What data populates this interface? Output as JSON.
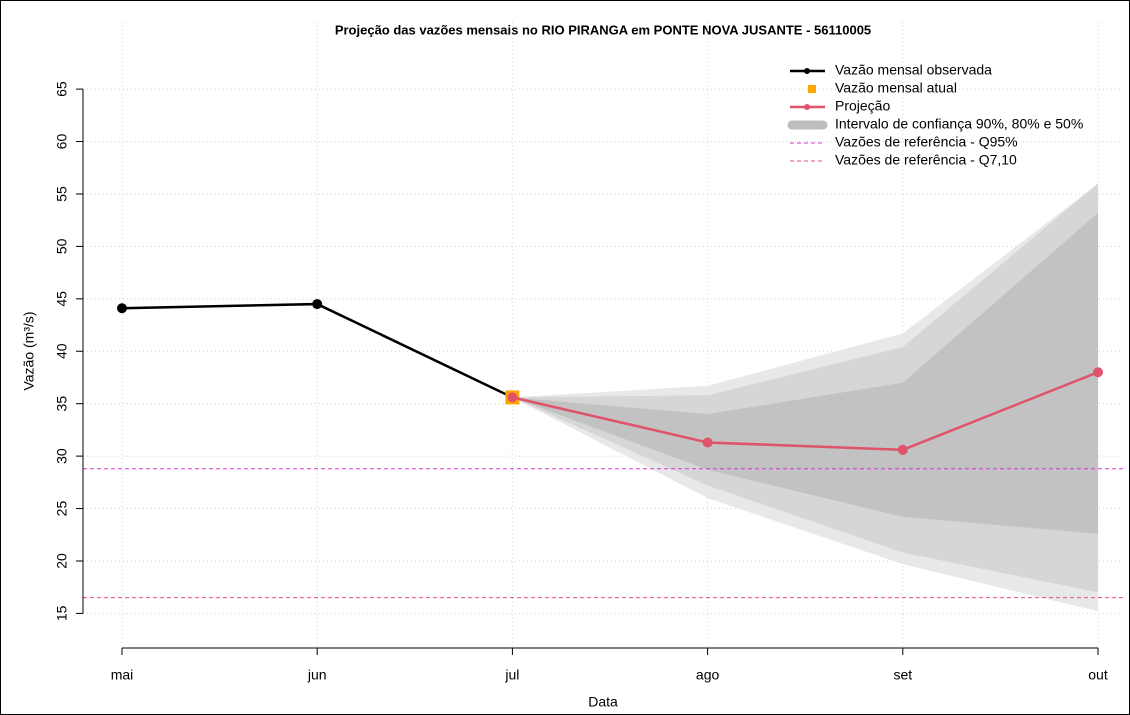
{
  "chart_data": {
    "type": "line",
    "title": "Projeção das vazões mensais no RIO PIRANGA em PONTE NOVA JUSANTE - 56110005",
    "xlabel": "Data",
    "ylabel": "Vazão (m³/s)",
    "categories": [
      "mai",
      "jun",
      "jul",
      "ago",
      "set",
      "out"
    ],
    "ylim": [
      11.7,
      71.4
    ],
    "yticks": [
      15,
      20,
      25,
      30,
      35,
      40,
      45,
      50,
      55,
      60,
      65
    ],
    "grid": true,
    "legend": "top-right",
    "bands_legend": {
      "name": "Intervalo de confiança 90%, 80% e 50%",
      "color": "#bebebe"
    },
    "bands": [
      {
        "color": "#e8e8e8",
        "lower": [
          null,
          null,
          35.6,
          26.0,
          19.7,
          15.2
        ],
        "upper": [
          null,
          null,
          35.6,
          36.7,
          41.7,
          56.0
        ]
      },
      {
        "color": "#d6d6d6",
        "lower": [
          null,
          null,
          35.6,
          27.2,
          20.8,
          17.0
        ],
        "upper": [
          null,
          null,
          35.6,
          35.8,
          40.4,
          56.0
        ]
      },
      {
        "color": "#c2c2c2",
        "lower": [
          null,
          null,
          35.6,
          28.7,
          24.2,
          22.6
        ],
        "upper": [
          null,
          null,
          35.6,
          34.0,
          37.0,
          53.2
        ]
      }
    ],
    "series": [
      {
        "name": "Vazão mensal observada",
        "color": "#000000",
        "marker": "circle",
        "values": [
          44.1,
          44.5,
          35.6,
          null,
          null,
          null
        ]
      },
      {
        "name": "Vazão mensal atual",
        "color": "#ffa500",
        "marker": "square",
        "values": [
          null,
          null,
          35.6,
          null,
          null,
          null
        ]
      },
      {
        "name": "Projeção",
        "color": "#df536b",
        "marker": "circle",
        "values": [
          null,
          null,
          35.6,
          31.3,
          30.6,
          38.0
        ]
      }
    ],
    "reference_lines": [
      {
        "name": "Vazões de referência - Q95%",
        "value": 28.8,
        "color": "#d633d6"
      },
      {
        "name": "Vazões de referência - Q7,10",
        "value": 16.5,
        "color": "#e0507a"
      }
    ]
  }
}
